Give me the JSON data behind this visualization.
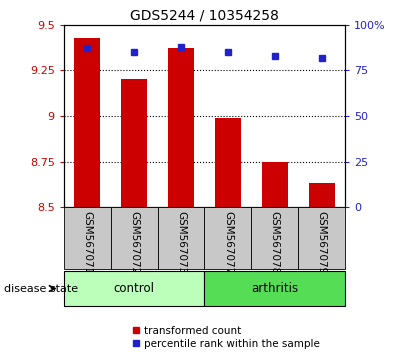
{
  "title": "GDS5244 / 10354258",
  "samples": [
    "GSM567071",
    "GSM567072",
    "GSM567073",
    "GSM567077",
    "GSM567078",
    "GSM567079"
  ],
  "transformed_count": [
    9.43,
    9.2,
    9.37,
    8.99,
    8.75,
    8.63
  ],
  "percentile_rank": [
    87,
    85,
    88,
    85,
    83,
    82
  ],
  "ylim_left": [
    8.5,
    9.5
  ],
  "ylim_right": [
    0,
    100
  ],
  "yticks_left": [
    8.5,
    8.75,
    9.0,
    9.25,
    9.5
  ],
  "ytick_labels_left": [
    "8.5",
    "8.75",
    "9",
    "9.25",
    "9.5"
  ],
  "yticks_right": [
    0,
    25,
    50,
    75,
    100
  ],
  "ytick_labels_right": [
    "0",
    "25",
    "50",
    "75",
    "100%"
  ],
  "bar_color": "#cc0000",
  "dot_color": "#2222cc",
  "bar_bottom": 8.5,
  "groups": [
    {
      "label": "control",
      "indices": [
        0,
        1,
        2
      ],
      "color": "#bbffbb"
    },
    {
      "label": "arthritis",
      "indices": [
        3,
        4,
        5
      ],
      "color": "#55dd55"
    }
  ],
  "group_label_text": "disease state",
  "tick_label_color_left": "#cc0000",
  "tick_label_color_right": "#2222cc",
  "bg_xtick": "#c8c8c8",
  "legend_red_label": "transformed count",
  "legend_blue_label": "percentile rank within the sample"
}
